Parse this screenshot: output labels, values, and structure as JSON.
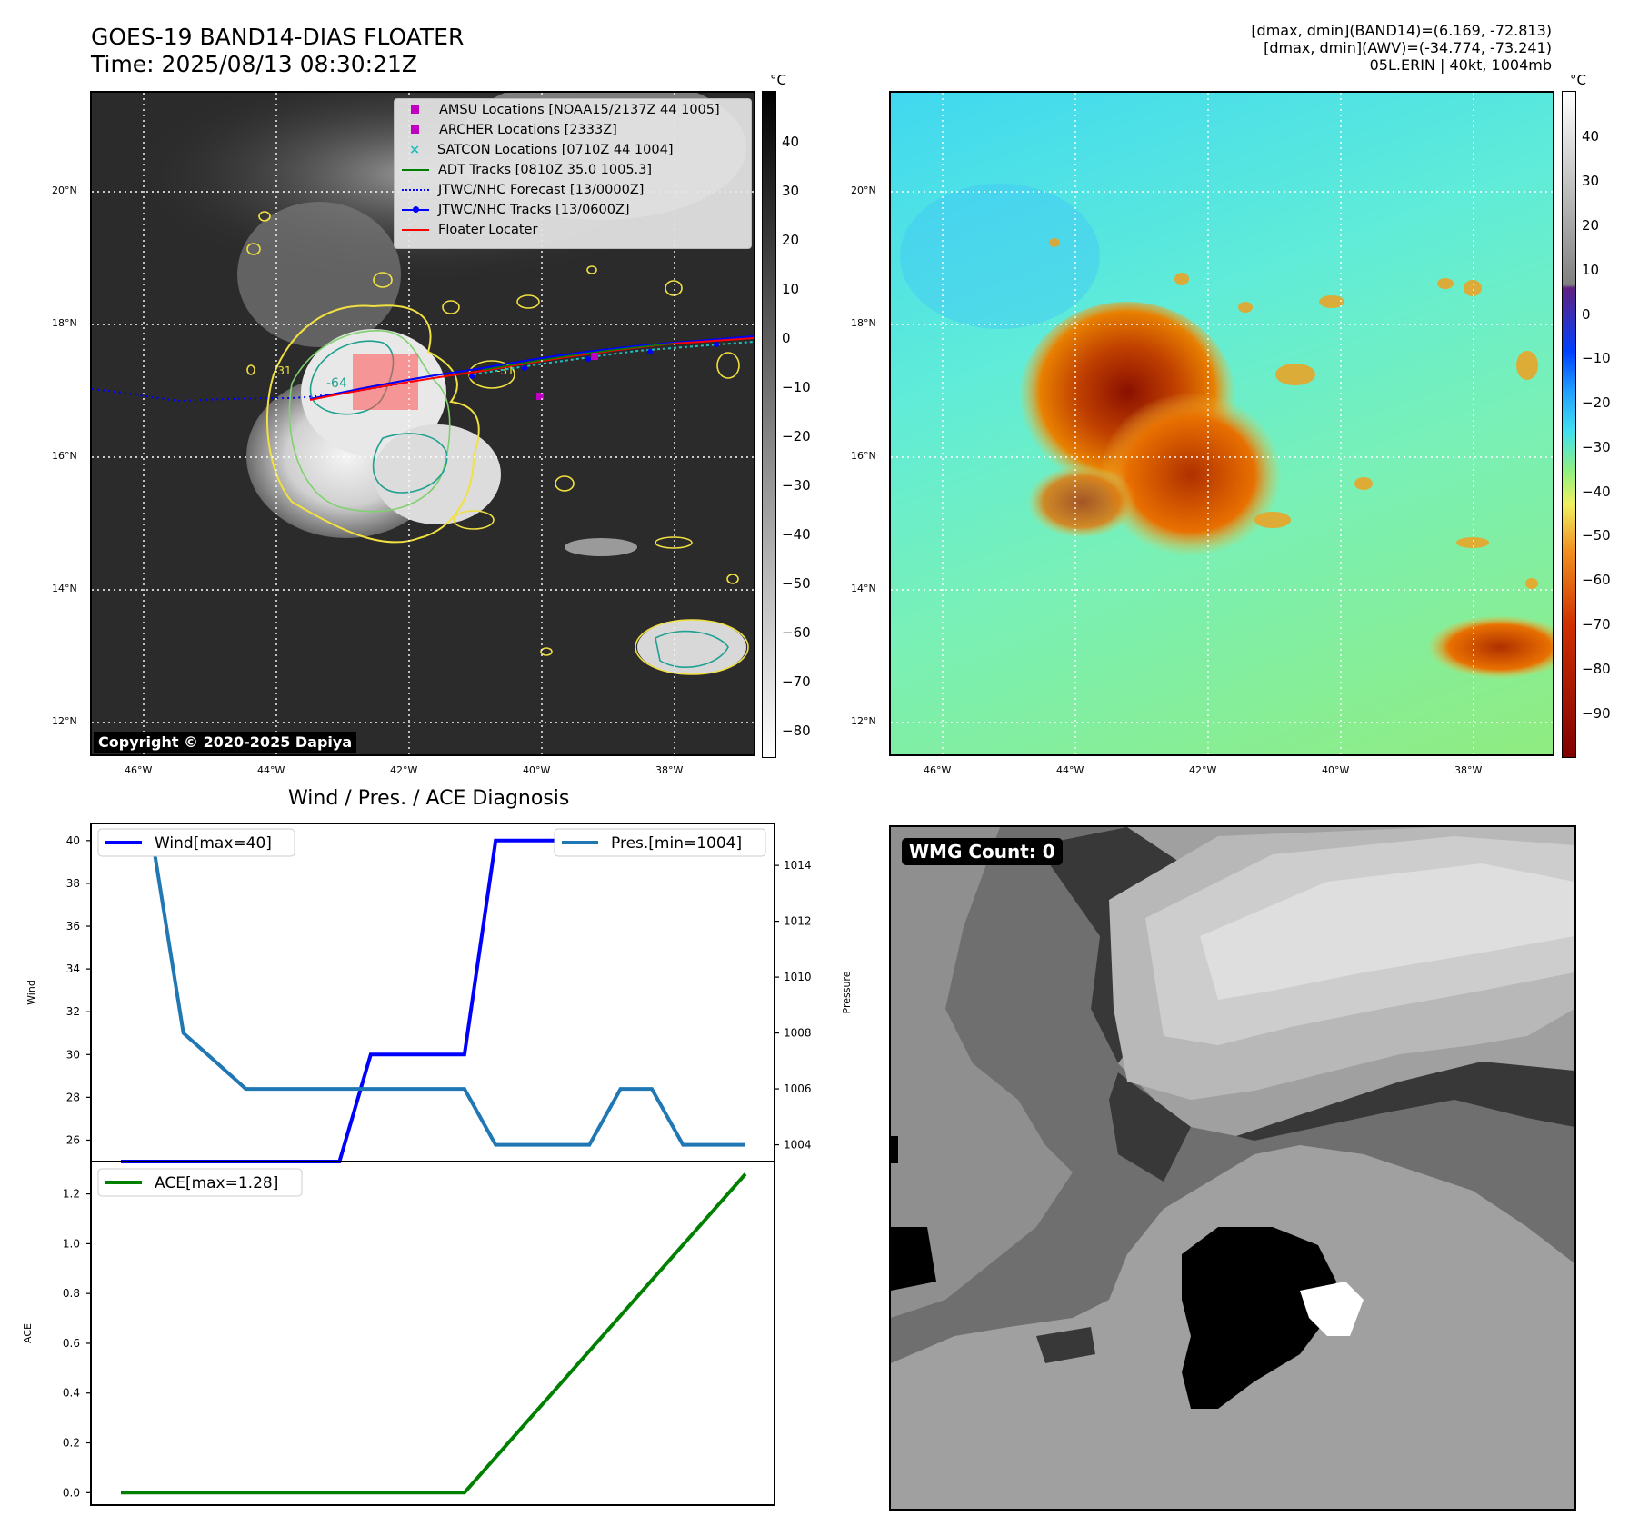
{
  "header": {
    "title_line1": "GOES-19 BAND14-DIAS FLOATER",
    "title_line2": "Time: 2025/08/13 08:30:21Z",
    "info_line1": "[dmax, dmin](BAND14)=(6.169, -72.813)",
    "info_line2": "[dmax, dmin](AWV)=(-34.774, -73.241)",
    "info_line3": "05L.ERIN | 40kt, 1004mb"
  },
  "map_axes": {
    "lat_labels": [
      "20°N",
      "18°N",
      "16°N",
      "14°N",
      "12°N"
    ],
    "lon_labels": [
      "46°W",
      "44°W",
      "42°W",
      "40°W",
      "38°W"
    ]
  },
  "ir_panel": {
    "colorbar_unit": "°C",
    "colorbar_ticks": [
      "40",
      "30",
      "20",
      "10",
      "0",
      "−10",
      "−20",
      "−30",
      "−40",
      "−50",
      "−60",
      "−70",
      "−80"
    ],
    "contour_labels": [
      "-64",
      "-31",
      "-31"
    ],
    "copyright": "Copyright © 2020-2025 Dapiya",
    "legend": [
      {
        "label": "AMSU Locations [NOAA15/2137Z 44 1005]",
        "color": "#c000c0",
        "marker": "square"
      },
      {
        "label": "ARCHER Locations [2333Z]",
        "color": "#c000c0",
        "marker": "square"
      },
      {
        "label": "SATCON Locations [0710Z 44 1004]",
        "color": "#20c0c0",
        "marker": "x"
      },
      {
        "label": "ADT Tracks [0810Z 35.0 1005.3]",
        "color": "#008000",
        "marker": "line"
      },
      {
        "label": "JTWC/NHC Forecast [13/0000Z]",
        "color": "#0000ff",
        "marker": "dotted"
      },
      {
        "label": "JTWC/NHC Tracks [13/0600Z]",
        "color": "#0000ff",
        "marker": "line-dot"
      },
      {
        "label": "Floater Locater",
        "color": "#ff0000",
        "marker": "line"
      }
    ]
  },
  "awv_panel": {
    "colorbar_unit": "°C",
    "colorbar_ticks": [
      "40",
      "30",
      "20",
      "10",
      "0",
      "−10",
      "−20",
      "−30",
      "−40",
      "−50",
      "−60",
      "−70",
      "−80",
      "−90"
    ]
  },
  "wmg_panel": {
    "label": "WMG Count: 0"
  },
  "chart_data": [
    {
      "type": "line",
      "title": "Wind / Pres. / ACE Diagnosis",
      "ylabel": "Wind",
      "y2label": "Pressure",
      "ylim": [
        25,
        40.8
      ],
      "y2lim": [
        1003.4,
        1015.5
      ],
      "yticks": [
        26,
        28,
        30,
        32,
        34,
        36,
        38,
        40
      ],
      "y2ticks": [
        1004,
        1006,
        1008,
        1010,
        1012,
        1014
      ],
      "x": [
        0,
        1,
        2,
        3,
        4,
        5,
        6,
        7,
        8,
        9,
        10,
        11,
        12,
        13,
        14,
        15,
        16,
        17,
        18,
        19,
        20
      ],
      "series": [
        {
          "name": "Wind[max=40]",
          "color": "#0000ff",
          "axis": "left",
          "values": [
            25,
            25,
            25,
            25,
            25,
            25,
            25,
            25,
            30,
            30,
            30,
            30,
            40,
            40,
            40,
            40,
            40,
            40,
            40,
            40,
            40
          ]
        },
        {
          "name": "Pres.[min=1004]",
          "color": "#1f77b4",
          "axis": "right",
          "values": [
            1015,
            1015,
            1008,
            1007,
            1006,
            1006,
            1006,
            1006,
            1006,
            1006,
            1006,
            1006,
            1004,
            1004,
            1004,
            1004,
            1006,
            1006,
            1004,
            1004,
            1004
          ]
        }
      ]
    },
    {
      "type": "line",
      "ylabel": "ACE",
      "ylim": [
        -0.05,
        1.33
      ],
      "yticks": [
        "0.0",
        "0.2",
        "0.4",
        "0.6",
        "0.8",
        "1.0",
        "1.2"
      ],
      "x": [
        0,
        11,
        20
      ],
      "series": [
        {
          "name": "ACE[max=1.28]",
          "color": "#008000",
          "values": [
            0,
            0,
            1.28
          ]
        }
      ]
    }
  ]
}
